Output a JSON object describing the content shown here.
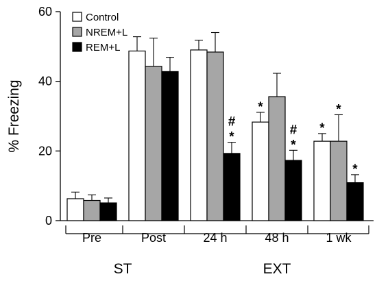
{
  "chart_data": {
    "type": "bar",
    "ylabel": "% Freezing",
    "ylim": [
      0,
      60
    ],
    "yticks": [
      0,
      20,
      40,
      60
    ],
    "legend_position": "top-left",
    "categories": [
      "Pre",
      "Post",
      "24 h",
      "48 h",
      "1 wk"
    ],
    "groups": [
      {
        "label": "ST",
        "categories": [
          "Pre",
          "Post"
        ]
      },
      {
        "label": "EXT",
        "categories": [
          "24 h",
          "48 h",
          "1 wk"
        ]
      }
    ],
    "series": [
      {
        "name": "Control",
        "color": "#ffffff",
        "values": [
          6.3,
          48.7,
          49.0,
          28.3,
          22.8
        ],
        "errors": [
          1.9,
          4.1,
          2.8,
          2.8,
          2.2
        ],
        "annotations": [
          "",
          "",
          "",
          "*",
          "*"
        ]
      },
      {
        "name": "NREM+L",
        "color": "#a6a6a6",
        "values": [
          5.8,
          44.3,
          48.4,
          35.6,
          22.8
        ],
        "errors": [
          1.6,
          8.1,
          5.6,
          6.7,
          7.6
        ],
        "annotations": [
          "",
          "",
          "",
          "",
          "*"
        ]
      },
      {
        "name": "REM+L",
        "color": "#000000",
        "values": [
          5.1,
          42.8,
          19.3,
          17.3,
          10.9
        ],
        "errors": [
          1.4,
          4.1,
          3.2,
          2.9,
          2.3
        ],
        "annotations": [
          "",
          "",
          "#\n*",
          "#\n*",
          "*"
        ]
      }
    ]
  }
}
